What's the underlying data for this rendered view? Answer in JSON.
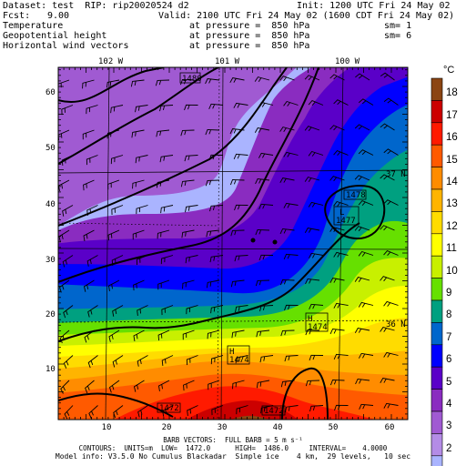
{
  "header": {
    "line1_left": "Dataset: test  RIP: rip20020524 d2",
    "line1_right": "Init: 1200 UTC Fri 24 May 02",
    "fcst_label": "Fcst:",
    "fcst_value": "9.00",
    "valid": "Valid: 2100 UTC Fri 24 May 02 (1600 CDT Fri 24 May 02)",
    "fields": [
      {
        "name": "Temperature",
        "at": "at pressure =  850 hPa",
        "sm": "sm= 1"
      },
      {
        "name": "Geopotential height",
        "at": "at pressure =  850 hPa",
        "sm": "sm= 6"
      },
      {
        "name": "Horizontal wind vectors",
        "at": "at pressure =  850 hPa",
        "sm": ""
      }
    ]
  },
  "map": {
    "lon_labels": [
      "102 W",
      "101 W",
      "100 W"
    ],
    "lat_labels": [
      "37 N",
      "36 N"
    ],
    "x_ticks": [
      "10",
      "20",
      "30",
      "40",
      "50",
      "60"
    ],
    "y_ticks": [
      "10",
      "20",
      "30",
      "40",
      "50",
      "60"
    ],
    "height_labels": [
      "1480",
      "1478",
      "L",
      "1477",
      "H",
      "1474",
      "H",
      "1474",
      "1472",
      "1472"
    ],
    "colors": {
      "frame": "#000000",
      "contour": "#000000"
    }
  },
  "colorbar": {
    "unit": "°C",
    "levels": [
      "18",
      "17",
      "16",
      "15",
      "14",
      "13",
      "12",
      "11",
      "10",
      "9",
      "8",
      "7",
      "6",
      "5",
      "4",
      "3",
      "2"
    ],
    "colors": [
      "#8b4513",
      "#cc0000",
      "#ff1a00",
      "#ff5a00",
      "#ff8c00",
      "#ffb400",
      "#ffdc00",
      "#ffff00",
      "#c8f000",
      "#66e000",
      "#00a080",
      "#0066cc",
      "#0000ff",
      "#5a00c8",
      "#8a2cc0",
      "#a05ad2",
      "#b48ce6",
      "#aab4ff"
    ]
  },
  "footer": {
    "line1": "BARB VECTORS:  FULL BARB = 5 m s⁻¹",
    "line2": "CONTOURS:  UNITS=m  LOW=  1472.0      HIGH=  1486.0     INTERVAL=    4.0000",
    "line3": "Model info: V3.5.0 No Cumulus Blackadar  Simple ice    4 km,  29 levels,   10 sec"
  }
}
